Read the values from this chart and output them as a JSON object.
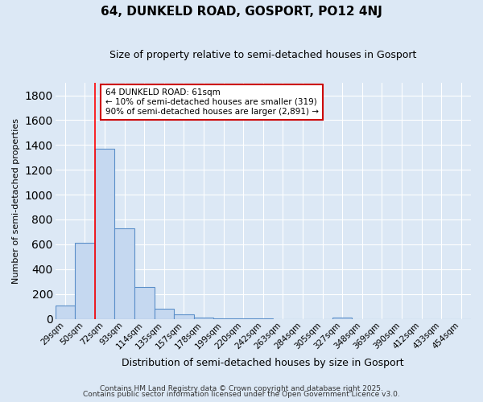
{
  "title1": "64, DUNKELD ROAD, GOSPORT, PO12 4NJ",
  "title2": "Size of property relative to semi-detached houses in Gosport",
  "xlabel": "Distribution of semi-detached houses by size in Gosport",
  "ylabel": "Number of semi-detached properties",
  "categories": [
    "29sqm",
    "50sqm",
    "72sqm",
    "93sqm",
    "114sqm",
    "135sqm",
    "157sqm",
    "178sqm",
    "199sqm",
    "220sqm",
    "242sqm",
    "263sqm",
    "284sqm",
    "305sqm",
    "327sqm",
    "348sqm",
    "369sqm",
    "390sqm",
    "412sqm",
    "433sqm",
    "454sqm"
  ],
  "values": [
    110,
    615,
    1370,
    730,
    255,
    80,
    35,
    12,
    5,
    5,
    5,
    0,
    0,
    0,
    12,
    0,
    0,
    0,
    0,
    0,
    0
  ],
  "bar_color": "#c5d8f0",
  "bar_edge_color": "#5b8fc9",
  "annotation_text_line1": "64 DUNKELD ROAD: 61sqm",
  "annotation_text_line2": "← 10% of semi-detached houses are smaller (319)",
  "annotation_text_line3": "90% of semi-detached houses are larger (2,891) →",
  "ylim": [
    0,
    1900
  ],
  "yticks": [
    0,
    200,
    400,
    600,
    800,
    1000,
    1200,
    1400,
    1600,
    1800
  ],
  "footer1": "Contains HM Land Registry data © Crown copyright and database right 2025.",
  "footer2": "Contains public sector information licensed under the Open Government Licence v3.0.",
  "background_color": "#dce8f5",
  "plot_bg_color": "#dce8f5",
  "grid_color": "#ffffff",
  "annotation_box_facecolor": "#ffffff",
  "annotation_box_edgecolor": "#cc0000",
  "red_line_x": 1.5,
  "title1_fontsize": 11,
  "title2_fontsize": 9,
  "ylabel_fontsize": 8,
  "xlabel_fontsize": 9,
  "tick_fontsize": 7.5,
  "annotation_fontsize": 7.5,
  "footer_fontsize": 6.5
}
